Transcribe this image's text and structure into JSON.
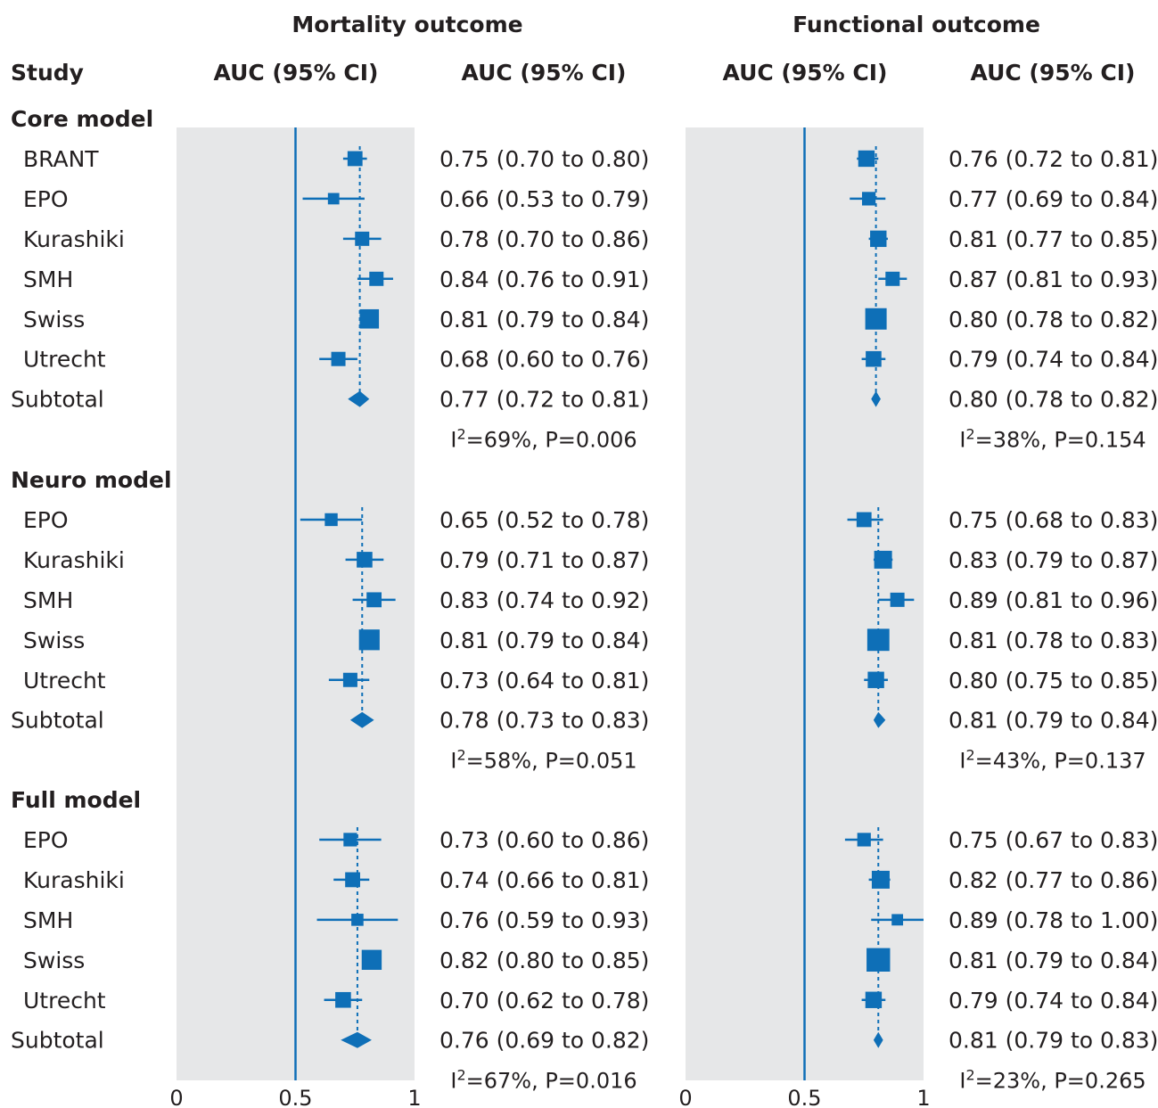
{
  "headers": {
    "study": "Study",
    "auc_col": "AUC (95% CI)"
  },
  "colors": {
    "accent": "#0e6fb7",
    "panel_bg": "#e6e7e8",
    "text": "#231f20"
  },
  "chart_data": {
    "type": "forest",
    "xlim": [
      0,
      1
    ],
    "ticks": [
      "0",
      "0.5",
      "1"
    ],
    "reference_line": 0.5,
    "panels": [
      {
        "title": "Mortality outcome",
        "groups": [
          {
            "name": "Core model",
            "studies": [
              {
                "label": "BRANT",
                "auc": 0.75,
                "lo": 0.7,
                "hi": 0.8,
                "text": "0.75 (0.70 to 0.80)",
                "weight": 0.55
              },
              {
                "label": "EPO",
                "auc": 0.66,
                "lo": 0.53,
                "hi": 0.79,
                "text": "0.66 (0.53 to 0.79)",
                "weight": 0.3
              },
              {
                "label": "Kurashiki",
                "auc": 0.78,
                "lo": 0.7,
                "hi": 0.86,
                "text": "0.78 (0.70 to 0.86)",
                "weight": 0.5
              },
              {
                "label": "SMH",
                "auc": 0.84,
                "lo": 0.76,
                "hi": 0.91,
                "text": "0.84 (0.76 to 0.91)",
                "weight": 0.5
              },
              {
                "label": "Swiss",
                "auc": 0.81,
                "lo": 0.79,
                "hi": 0.84,
                "text": "0.81 (0.79 to 0.84)",
                "weight": 0.85
              },
              {
                "label": "Utrecht",
                "auc": 0.68,
                "lo": 0.6,
                "hi": 0.76,
                "text": "0.68 (0.60 to 0.76)",
                "weight": 0.5
              }
            ],
            "subtotal": {
              "label": "Subtotal",
              "auc": 0.77,
              "lo": 0.72,
              "hi": 0.81,
              "text": "0.77 (0.72 to 0.81)"
            },
            "heterogeneity": {
              "i2": "69%",
              "p": "0.006"
            }
          },
          {
            "name": "Neuro model",
            "studies": [
              {
                "label": "EPO",
                "auc": 0.65,
                "lo": 0.52,
                "hi": 0.78,
                "text": "0.65 (0.52 to 0.78)",
                "weight": 0.4
              },
              {
                "label": "Kurashiki",
                "auc": 0.79,
                "lo": 0.71,
                "hi": 0.87,
                "text": "0.79 (0.71 to 0.87)",
                "weight": 0.6
              },
              {
                "label": "SMH",
                "auc": 0.83,
                "lo": 0.74,
                "hi": 0.92,
                "text": "0.83 (0.74 to 0.92)",
                "weight": 0.55
              },
              {
                "label": "Swiss",
                "auc": 0.81,
                "lo": 0.79,
                "hi": 0.84,
                "text": "0.81 (0.79 to 0.84)",
                "weight": 0.95
              },
              {
                "label": "Utrecht",
                "auc": 0.73,
                "lo": 0.64,
                "hi": 0.81,
                "text": "0.73 (0.64 to 0.81)",
                "weight": 0.5
              }
            ],
            "subtotal": {
              "label": "Subtotal",
              "auc": 0.78,
              "lo": 0.73,
              "hi": 0.83,
              "text": "0.78 (0.73 to 0.83)"
            },
            "heterogeneity": {
              "i2": "58%",
              "p": "0.051"
            }
          },
          {
            "name": "Full model",
            "studies": [
              {
                "label": "EPO",
                "auc": 0.73,
                "lo": 0.6,
                "hi": 0.86,
                "text": "0.73 (0.60 to 0.86)",
                "weight": 0.45
              },
              {
                "label": "Kurashiki",
                "auc": 0.74,
                "lo": 0.66,
                "hi": 0.81,
                "text": "0.74 (0.66 to 0.81)",
                "weight": 0.55
              },
              {
                "label": "SMH",
                "auc": 0.76,
                "lo": 0.59,
                "hi": 0.93,
                "text": "0.76 (0.59 to 0.93)",
                "weight": 0.35
              },
              {
                "label": "Swiss",
                "auc": 0.82,
                "lo": 0.8,
                "hi": 0.85,
                "text": "0.82 (0.80 to 0.85)",
                "weight": 0.9
              },
              {
                "label": "Utrecht",
                "auc": 0.7,
                "lo": 0.62,
                "hi": 0.78,
                "text": "0.70 (0.62 to 0.78)",
                "weight": 0.6
              }
            ],
            "subtotal": {
              "label": "Subtotal",
              "auc": 0.76,
              "lo": 0.69,
              "hi": 0.82,
              "text": "0.76 (0.69 to 0.82)"
            },
            "heterogeneity": {
              "i2": "67%",
              "p": "0.016"
            }
          }
        ]
      },
      {
        "title": "Functional outcome",
        "groups": [
          {
            "name": "Core model",
            "studies": [
              {
                "label": "BRANT",
                "auc": 0.76,
                "lo": 0.72,
                "hi": 0.81,
                "text": "0.76 (0.72 to 0.81)",
                "weight": 0.65
              },
              {
                "label": "EPO",
                "auc": 0.77,
                "lo": 0.69,
                "hi": 0.84,
                "text": "0.77 (0.69 to 0.84)",
                "weight": 0.45
              },
              {
                "label": "Kurashiki",
                "auc": 0.81,
                "lo": 0.77,
                "hi": 0.85,
                "text": "0.81 (0.77 to 0.85)",
                "weight": 0.65
              },
              {
                "label": "SMH",
                "auc": 0.87,
                "lo": 0.81,
                "hi": 0.93,
                "text": "0.87 (0.81 to 0.93)",
                "weight": 0.5
              },
              {
                "label": "Swiss",
                "auc": 0.8,
                "lo": 0.78,
                "hi": 0.82,
                "text": "0.80 (0.78 to 0.82)",
                "weight": 1.0
              },
              {
                "label": "Utrecht",
                "auc": 0.79,
                "lo": 0.74,
                "hi": 0.84,
                "text": "0.79 (0.74 to 0.84)",
                "weight": 0.6
              }
            ],
            "subtotal": {
              "label": "Subtotal",
              "auc": 0.8,
              "lo": 0.78,
              "hi": 0.82,
              "text": "0.80 (0.78 to 0.82)"
            },
            "heterogeneity": {
              "i2": "38%",
              "p": "0.154"
            }
          },
          {
            "name": "Neuro model",
            "studies": [
              {
                "label": "EPO",
                "auc": 0.75,
                "lo": 0.68,
                "hi": 0.83,
                "text": "0.75 (0.68 to 0.83)",
                "weight": 0.55
              },
              {
                "label": "Kurashiki",
                "auc": 0.83,
                "lo": 0.79,
                "hi": 0.87,
                "text": "0.83 (0.79 to 0.87)",
                "weight": 0.75
              },
              {
                "label": "SMH",
                "auc": 0.89,
                "lo": 0.81,
                "hi": 0.96,
                "text": "0.89 (0.81 to 0.96)",
                "weight": 0.5
              },
              {
                "label": "Swiss",
                "auc": 0.81,
                "lo": 0.78,
                "hi": 0.83,
                "text": "0.81 (0.78 to 0.83)",
                "weight": 1.05
              },
              {
                "label": "Utrecht",
                "auc": 0.8,
                "lo": 0.75,
                "hi": 0.85,
                "text": "0.80 (0.75 to 0.85)",
                "weight": 0.65
              }
            ],
            "subtotal": {
              "label": "Subtotal",
              "auc": 0.81,
              "lo": 0.79,
              "hi": 0.84,
              "text": "0.81 (0.79 to 0.84)"
            },
            "heterogeneity": {
              "i2": "43%",
              "p": "0.137"
            }
          },
          {
            "name": "Full model",
            "studies": [
              {
                "label": "EPO",
                "auc": 0.75,
                "lo": 0.67,
                "hi": 0.83,
                "text": "0.75 (0.67 to 0.83)",
                "weight": 0.45
              },
              {
                "label": "Kurashiki",
                "auc": 0.82,
                "lo": 0.77,
                "hi": 0.86,
                "text": "0.82 (0.77 to 0.86)",
                "weight": 0.75
              },
              {
                "label": "SMH",
                "auc": 0.89,
                "lo": 0.78,
                "hi": 1.0,
                "text": "0.89 (0.78 to 1.00)",
                "weight": 0.3
              },
              {
                "label": "Swiss",
                "auc": 0.81,
                "lo": 0.79,
                "hi": 0.84,
                "text": "0.81 (0.79 to 0.84)",
                "weight": 1.15
              },
              {
                "label": "Utrecht",
                "auc": 0.79,
                "lo": 0.74,
                "hi": 0.84,
                "text": "0.79 (0.74 to 0.84)",
                "weight": 0.65
              }
            ],
            "subtotal": {
              "label": "Subtotal",
              "auc": 0.81,
              "lo": 0.79,
              "hi": 0.83,
              "text": "0.81 (0.79 to 0.83)"
            },
            "heterogeneity": {
              "i2": "23%",
              "p": "0.265"
            }
          }
        ]
      }
    ]
  }
}
